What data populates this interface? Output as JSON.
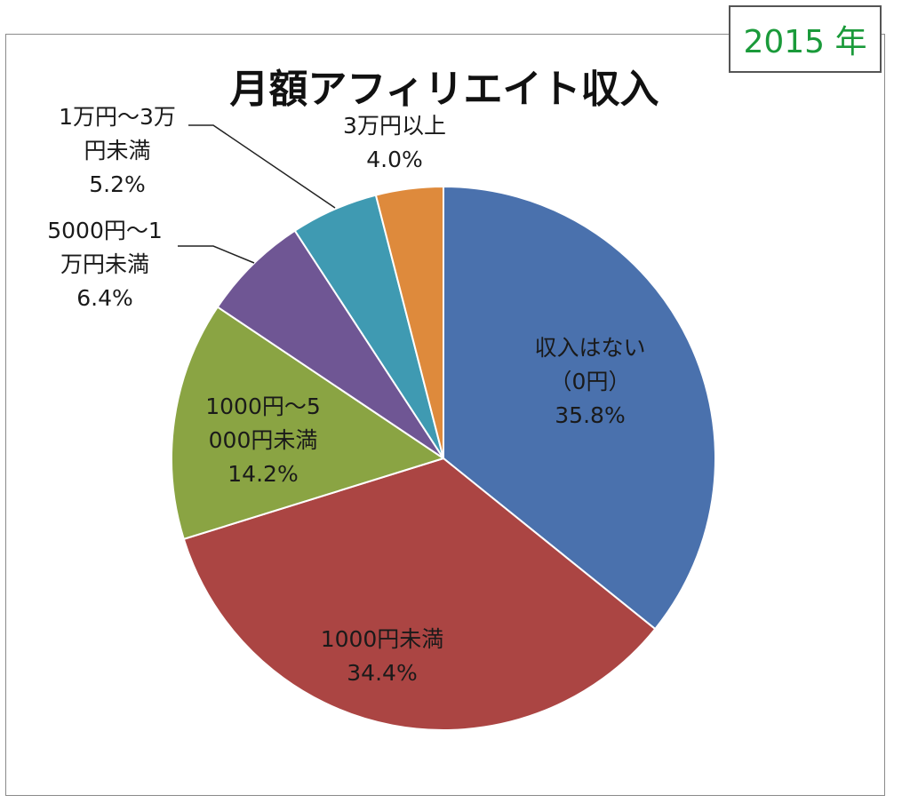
{
  "badge": {
    "year_text": "2015 年",
    "color": "#1a9a3a"
  },
  "chart_data": {
    "type": "pie",
    "title": "月額アフィリエイト収入",
    "start_angle_deg": 0,
    "direction": "clockwise",
    "slices": [
      {
        "label_lines": [
          "収入はない",
          "（0円）"
        ],
        "value": 35.8,
        "value_text": "35.8%",
        "color": "#4a71ad"
      },
      {
        "label_lines": [
          "1000円未満"
        ],
        "value": 34.4,
        "value_text": "34.4%",
        "color": "#ab4543"
      },
      {
        "label_lines": [
          "1000円～5",
          "000円未満"
        ],
        "value": 14.2,
        "value_text": "14.2%",
        "color": "#8aa443"
      },
      {
        "label_lines": [
          "5000円～1",
          "万円未満"
        ],
        "value": 6.4,
        "value_text": "6.4%",
        "color": "#6f5694"
      },
      {
        "label_lines": [
          "1万円～3万",
          "円未満"
        ],
        "value": 5.2,
        "value_text": "5.2%",
        "color": "#3f9ab2"
      },
      {
        "label_lines": [
          "3万円以上"
        ],
        "value": 4.0,
        "value_text": "4.0%",
        "color": "#de8a3c"
      }
    ]
  }
}
